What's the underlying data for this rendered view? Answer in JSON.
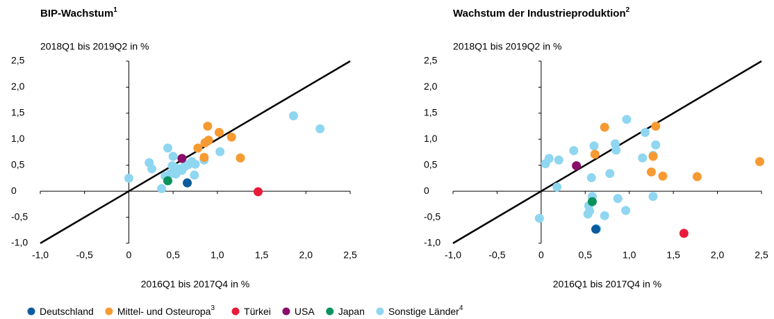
{
  "legend_order": "shared",
  "chart_data": [
    {
      "type": "scatter",
      "title": "BIP-Wachstum",
      "title_note": "1",
      "ylabel": "2018Q1 bis 2019Q2 in %",
      "xlabel": "2016Q1 bis 2017Q4 in %",
      "xlim": [
        -1.0,
        2.5
      ],
      "ylim": [
        -1.0,
        2.5
      ],
      "xticks": [
        {
          "value": -1.0,
          "label": "-1,0"
        },
        {
          "value": -0.5,
          "label": "-0,5"
        },
        0,
        {
          "value": 0.5,
          "label": "0,5"
        },
        {
          "value": 1.0,
          "label": "1,0"
        },
        {
          "value": 1.5,
          "label": "1,5"
        },
        {
          "value": 2.0,
          "label": "2,0"
        },
        {
          "value": 2.5,
          "label": "2,5"
        }
      ],
      "yticks": [
        {
          "value": -1.0,
          "label": "-1,0"
        },
        {
          "value": -0.5,
          "label": "-0,5"
        },
        0,
        {
          "value": 0.5,
          "label": "0,5"
        },
        {
          "value": 1.0,
          "label": "1,0"
        },
        {
          "value": 1.5,
          "label": "1,5"
        },
        {
          "value": 2.0,
          "label": "2,0"
        },
        {
          "value": 2.5,
          "label": "2,5"
        }
      ],
      "series": [
        {
          "name": "Deutschland",
          "color": "#0b5c9e",
          "x": [
            0.66
          ],
          "values": [
            0.16
          ]
        },
        {
          "name": "Mittel- und Osteuropa",
          "note": "3",
          "color": "#f79a32",
          "x": [
            0.89,
            1.02,
            1.16,
            0.9,
            0.86,
            0.78,
            0.85,
            1.26
          ],
          "values": [
            1.25,
            1.13,
            1.04,
            0.98,
            0.93,
            0.83,
            0.65,
            0.64
          ]
        },
        {
          "name": "Türkei",
          "color": "#ea1b3a",
          "x": [
            1.46
          ],
          "values": [
            -0.01
          ]
        },
        {
          "name": "USA",
          "color": "#8a0c6a",
          "x": [
            0.6
          ],
          "values": [
            0.63
          ]
        },
        {
          "name": "Japan",
          "color": "#0a925d",
          "x": [
            0.44
          ],
          "values": [
            0.2
          ]
        },
        {
          "name": "Sonstige Länder",
          "note": "4",
          "color": "#8fd6f1",
          "x": [
            0,
            0.23,
            0.26,
            0.44,
            0.37,
            0.41,
            0.5,
            0.51,
            0.53,
            0.57,
            0.63,
            0.67,
            0.71,
            0.75,
            0.74,
            0.85,
            1.03,
            1.86,
            2.16,
            0.49,
            0.6,
            0.46
          ],
          "values": [
            0.25,
            0.55,
            0.43,
            0.83,
            0.05,
            0.29,
            0.67,
            0.47,
            0.33,
            0.43,
            0.47,
            0.51,
            0.57,
            0.52,
            0.31,
            0.6,
            0.76,
            1.45,
            1.2,
            0.49,
            0.4,
            0.33
          ]
        }
      ]
    },
    {
      "type": "scatter",
      "title": "Wachstum der Industrieproduktion",
      "title_note": "2",
      "ylabel": "2018Q1 bis 2019Q2 in %",
      "xlabel": "2016Q1 bis 2017Q4 in %",
      "xlim": [
        -1.0,
        2.5
      ],
      "ylim": [
        -1.0,
        2.5
      ],
      "xticks": [
        {
          "value": -1.0,
          "label": "-1,0"
        },
        {
          "value": -0.5,
          "label": "-0,5"
        },
        0,
        {
          "value": 0.5,
          "label": "0,5"
        },
        {
          "value": 1.0,
          "label": "1,0"
        },
        {
          "value": 1.5,
          "label": "1,5"
        },
        {
          "value": 2.0,
          "label": "2,0"
        },
        {
          "value": 2.5,
          "label": "2,5"
        }
      ],
      "yticks": [
        {
          "value": -1.0,
          "label": "-1,0"
        },
        {
          "value": -0.5,
          "label": "-0,5"
        },
        0,
        {
          "value": 0.5,
          "label": "0,5"
        },
        {
          "value": 1.0,
          "label": "1,0"
        },
        {
          "value": 1.5,
          "label": "1,5"
        },
        {
          "value": 2.0,
          "label": "2,0"
        },
        {
          "value": 2.5,
          "label": "2,5"
        }
      ],
      "series": [
        {
          "x": [
            0.62
          ],
          "values": [
            -0.73
          ]
        },
        {
          "x": [
            0.72,
            1.3,
            0.61,
            1.27,
            1.25,
            1.38,
            1.77,
            2.48
          ],
          "values": [
            1.23,
            1.25,
            0.71,
            0.67,
            0.37,
            0.29,
            0.28,
            0.57
          ]
        },
        {
          "x": [
            1.62
          ],
          "values": [
            -0.81
          ]
        },
        {
          "x": [
            0.4
          ],
          "values": [
            0.49
          ]
        },
        {
          "x": [
            0.58
          ],
          "values": [
            -0.2
          ]
        },
        {
          "x": [
            -0.02,
            0.05,
            0.09,
            0.2,
            0.18,
            0.37,
            0.6,
            0.57,
            0.54,
            0.58,
            0.55,
            0.53,
            0.63,
            0.72,
            0.78,
            0.84,
            0.85,
            0.87,
            0.97,
            0.96,
            1.15,
            1.18,
            1.27,
            1.3,
            1.27
          ],
          "values": [
            -0.52,
            0.53,
            0.63,
            0.6,
            0.08,
            0.78,
            0.87,
            0.26,
            -0.28,
            -0.1,
            -0.38,
            -0.44,
            -0.72,
            -0.47,
            0.34,
            0.91,
            0.79,
            -0.14,
            1.38,
            -0.37,
            0.64,
            1.13,
            0.69,
            0.89,
            -0.1
          ]
        }
      ]
    }
  ]
}
